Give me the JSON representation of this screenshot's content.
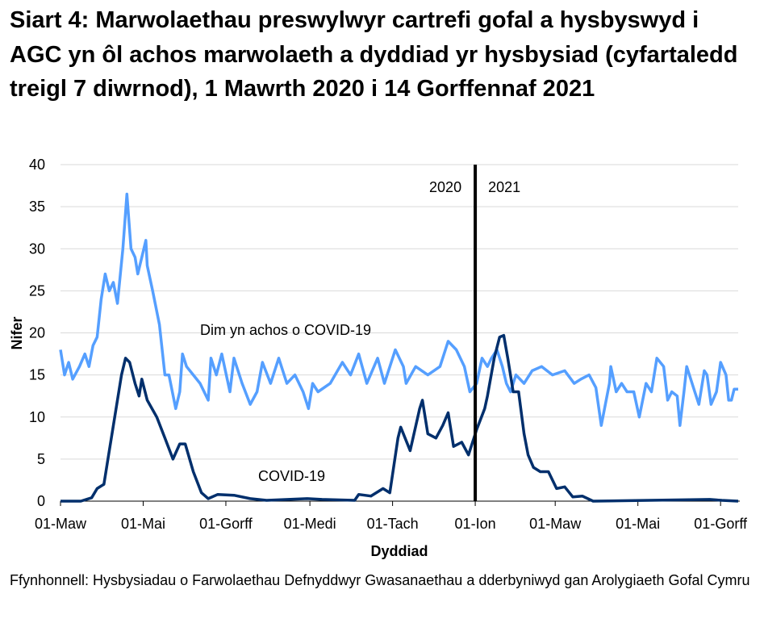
{
  "chart_data": {
    "type": "line",
    "title": "Siart 4: Marwolaethau preswylwyr cartrefi gofal a hysbyswyd i AGC yn ôl achos marwolaeth a dyddiad yr hysbysiad (cyfartaledd treigl 7 diwrnod), 1 Mawrth 2020 i 14 Gorffennaf 2021",
    "xlabel": "Dyddiad",
    "ylabel": "Nifer",
    "xlim": [
      "2020-03-01",
      "2021-07-14"
    ],
    "ylim": [
      0,
      40
    ],
    "yticks": [
      0,
      5,
      10,
      15,
      20,
      25,
      30,
      35,
      40
    ],
    "xticks": [
      {
        "date": "2020-03-01",
        "label": "01-Maw"
      },
      {
        "date": "2020-05-01",
        "label": "01-Mai"
      },
      {
        "date": "2020-07-01",
        "label": "01-Gorff"
      },
      {
        "date": "2020-09-01",
        "label": "01-Medi"
      },
      {
        "date": "2020-11-01",
        "label": "01-Tach"
      },
      {
        "date": "2021-01-01",
        "label": "01-Ion"
      },
      {
        "date": "2021-03-01",
        "label": "01-Maw"
      },
      {
        "date": "2021-05-01",
        "label": "01-Mai"
      },
      {
        "date": "2021-07-01",
        "label": "01-Gorff"
      }
    ],
    "grid": true,
    "divider": {
      "date": "2021-01-01",
      "left_label": "2020",
      "right_label": "2021"
    },
    "colors": {
      "non_covid": "#559fff",
      "covid": "#002f6c"
    },
    "series": [
      {
        "name": "Dim yn achos o COVID-19",
        "color": "#559fff",
        "points": [
          [
            "2020-03-01",
            18
          ],
          [
            "2020-03-04",
            15
          ],
          [
            "2020-03-07",
            16.5
          ],
          [
            "2020-03-10",
            14.5
          ],
          [
            "2020-03-15",
            16
          ],
          [
            "2020-03-19",
            17.5
          ],
          [
            "2020-03-22",
            16
          ],
          [
            "2020-03-25",
            18.5
          ],
          [
            "2020-03-28",
            19.5
          ],
          [
            "2020-03-31",
            24
          ],
          [
            "2020-04-03",
            27
          ],
          [
            "2020-04-06",
            25
          ],
          [
            "2020-04-09",
            26
          ],
          [
            "2020-04-12",
            23.5
          ],
          [
            "2020-04-16",
            30
          ],
          [
            "2020-04-19",
            36.5
          ],
          [
            "2020-04-22",
            30
          ],
          [
            "2020-04-25",
            29
          ],
          [
            "2020-04-27",
            27
          ],
          [
            "2020-04-30",
            29
          ],
          [
            "2020-05-03",
            31
          ],
          [
            "2020-05-04",
            28
          ],
          [
            "2020-05-08",
            25
          ],
          [
            "2020-05-13",
            21
          ],
          [
            "2020-05-17",
            15
          ],
          [
            "2020-05-20",
            15
          ],
          [
            "2020-05-25",
            11
          ],
          [
            "2020-05-28",
            13
          ],
          [
            "2020-05-30",
            17.5
          ],
          [
            "2020-06-02",
            16
          ],
          [
            "2020-06-07",
            15
          ],
          [
            "2020-06-12",
            14
          ],
          [
            "2020-06-18",
            12
          ],
          [
            "2020-06-20",
            17
          ],
          [
            "2020-06-24",
            15
          ],
          [
            "2020-06-28",
            17.5
          ],
          [
            "2020-07-04",
            13
          ],
          [
            "2020-07-07",
            17
          ],
          [
            "2020-07-13",
            14
          ],
          [
            "2020-07-19",
            11.5
          ],
          [
            "2020-07-24",
            13
          ],
          [
            "2020-07-28",
            16.5
          ],
          [
            "2020-08-03",
            14
          ],
          [
            "2020-08-09",
            17
          ],
          [
            "2020-08-15",
            14
          ],
          [
            "2020-08-21",
            15
          ],
          [
            "2020-08-27",
            13
          ],
          [
            "2020-08-31",
            11
          ],
          [
            "2020-09-03",
            14
          ],
          [
            "2020-09-07",
            13
          ],
          [
            "2020-09-16",
            14
          ],
          [
            "2020-09-25",
            16.5
          ],
          [
            "2020-10-01",
            15
          ],
          [
            "2020-10-07",
            17.5
          ],
          [
            "2020-10-13",
            14
          ],
          [
            "2020-10-21",
            17
          ],
          [
            "2020-10-26",
            14
          ],
          [
            "2020-11-03",
            18
          ],
          [
            "2020-11-09",
            16
          ],
          [
            "2020-11-11",
            14
          ],
          [
            "2020-11-18",
            16
          ],
          [
            "2020-11-27",
            15
          ],
          [
            "2020-12-06",
            16
          ],
          [
            "2020-12-12",
            19
          ],
          [
            "2020-12-18",
            18
          ],
          [
            "2020-12-24",
            16
          ],
          [
            "2020-12-28",
            13
          ],
          [
            "2021-01-02",
            14
          ],
          [
            "2021-01-06",
            17
          ],
          [
            "2021-01-10",
            16
          ],
          [
            "2021-01-13",
            17
          ],
          [
            "2021-01-17",
            18
          ],
          [
            "2021-01-21",
            16
          ],
          [
            "2021-01-24",
            14
          ],
          [
            "2021-01-27",
            13
          ],
          [
            "2021-01-31",
            15
          ],
          [
            "2021-02-06",
            14
          ],
          [
            "2021-02-12",
            15.5
          ],
          [
            "2021-02-19",
            16
          ],
          [
            "2021-02-27",
            15
          ],
          [
            "2021-03-08",
            15.5
          ],
          [
            "2021-03-15",
            14
          ],
          [
            "2021-03-20",
            14.5
          ],
          [
            "2021-03-26",
            15
          ],
          [
            "2021-03-31",
            13.5
          ],
          [
            "2021-04-04",
            9
          ],
          [
            "2021-04-10",
            14
          ],
          [
            "2021-04-11",
            16
          ],
          [
            "2021-04-15",
            13
          ],
          [
            "2021-04-19",
            14
          ],
          [
            "2021-04-23",
            13
          ],
          [
            "2021-04-28",
            13
          ],
          [
            "2021-05-02",
            10
          ],
          [
            "2021-05-07",
            14
          ],
          [
            "2021-05-11",
            13
          ],
          [
            "2021-05-15",
            17
          ],
          [
            "2021-05-20",
            16
          ],
          [
            "2021-05-23",
            12
          ],
          [
            "2021-05-26",
            13
          ],
          [
            "2021-05-30",
            12.5
          ],
          [
            "2021-06-01",
            9
          ],
          [
            "2021-06-04",
            13
          ],
          [
            "2021-06-06",
            16
          ],
          [
            "2021-06-12",
            13
          ],
          [
            "2021-06-15",
            11.5
          ],
          [
            "2021-06-19",
            15.5
          ],
          [
            "2021-06-21",
            15
          ],
          [
            "2021-06-24",
            11.5
          ],
          [
            "2021-06-28",
            13
          ],
          [
            "2021-07-01",
            16.5
          ],
          [
            "2021-07-05",
            15
          ],
          [
            "2021-07-07",
            12
          ],
          [
            "2021-07-09",
            12
          ],
          [
            "2021-07-11",
            13.3
          ],
          [
            "2021-07-14",
            13.3
          ]
        ]
      },
      {
        "name": "COVID-19",
        "color": "#002f6c",
        "points": [
          [
            "2020-03-01",
            0
          ],
          [
            "2020-03-16",
            0
          ],
          [
            "2020-03-24",
            0.4
          ],
          [
            "2020-03-28",
            1.5
          ],
          [
            "2020-04-02",
            2
          ],
          [
            "2020-04-05",
            5
          ],
          [
            "2020-04-10",
            10
          ],
          [
            "2020-04-15",
            15
          ],
          [
            "2020-04-18",
            17
          ],
          [
            "2020-04-21",
            16.5
          ],
          [
            "2020-04-25",
            14
          ],
          [
            "2020-04-28",
            12.5
          ],
          [
            "2020-04-30",
            14.5
          ],
          [
            "2020-05-04",
            12
          ],
          [
            "2020-05-11",
            10
          ],
          [
            "2020-05-17",
            7.5
          ],
          [
            "2020-05-23",
            5
          ],
          [
            "2020-05-28",
            6.8
          ],
          [
            "2020-06-01",
            6.8
          ],
          [
            "2020-06-07",
            3.5
          ],
          [
            "2020-06-13",
            1
          ],
          [
            "2020-06-18",
            0.3
          ],
          [
            "2020-06-25",
            0.8
          ],
          [
            "2020-07-07",
            0.7
          ],
          [
            "2020-07-19",
            0.3
          ],
          [
            "2020-07-31",
            0.1
          ],
          [
            "2020-08-30",
            0.3
          ],
          [
            "2020-09-10",
            0.2
          ],
          [
            "2020-10-04",
            0.1
          ],
          [
            "2020-10-07",
            0.8
          ],
          [
            "2020-10-16",
            0.6
          ],
          [
            "2020-10-25",
            1.5
          ],
          [
            "2020-10-30",
            1
          ],
          [
            "2020-11-05",
            7.5
          ],
          [
            "2020-11-07",
            8.8
          ],
          [
            "2020-11-14",
            6
          ],
          [
            "2020-11-21",
            11
          ],
          [
            "2020-11-23",
            12
          ],
          [
            "2020-11-27",
            8
          ],
          [
            "2020-12-03",
            7.5
          ],
          [
            "2020-12-08",
            9
          ],
          [
            "2020-12-12",
            10.5
          ],
          [
            "2020-12-16",
            6.5
          ],
          [
            "2020-12-22",
            7
          ],
          [
            "2020-12-27",
            5.5
          ],
          [
            "2021-01-02",
            8.5
          ],
          [
            "2021-01-08",
            11
          ],
          [
            "2021-01-10",
            12.5
          ],
          [
            "2021-01-15",
            17
          ],
          [
            "2021-01-19",
            19.5
          ],
          [
            "2021-01-22",
            19.7
          ],
          [
            "2021-01-25",
            17
          ],
          [
            "2021-01-29",
            13
          ],
          [
            "2021-02-02",
            13
          ],
          [
            "2021-02-06",
            8
          ],
          [
            "2021-02-09",
            5.5
          ],
          [
            "2021-02-13",
            4
          ],
          [
            "2021-02-18",
            3.5
          ],
          [
            "2021-02-24",
            3.5
          ],
          [
            "2021-03-02",
            1.5
          ],
          [
            "2021-03-08",
            1.7
          ],
          [
            "2021-03-14",
            0.5
          ],
          [
            "2021-03-21",
            0.6
          ],
          [
            "2021-03-29",
            0
          ],
          [
            "2021-06-23",
            0.2
          ],
          [
            "2021-07-02",
            0.1
          ],
          [
            "2021-07-14",
            0
          ]
        ]
      }
    ]
  },
  "source": "Ffynhonnell: Hysbysiadau o Farwolaethau Defnyddwyr Gwasanaethau a dderbyniwyd gan Arolygiaeth Gofal Cymru"
}
